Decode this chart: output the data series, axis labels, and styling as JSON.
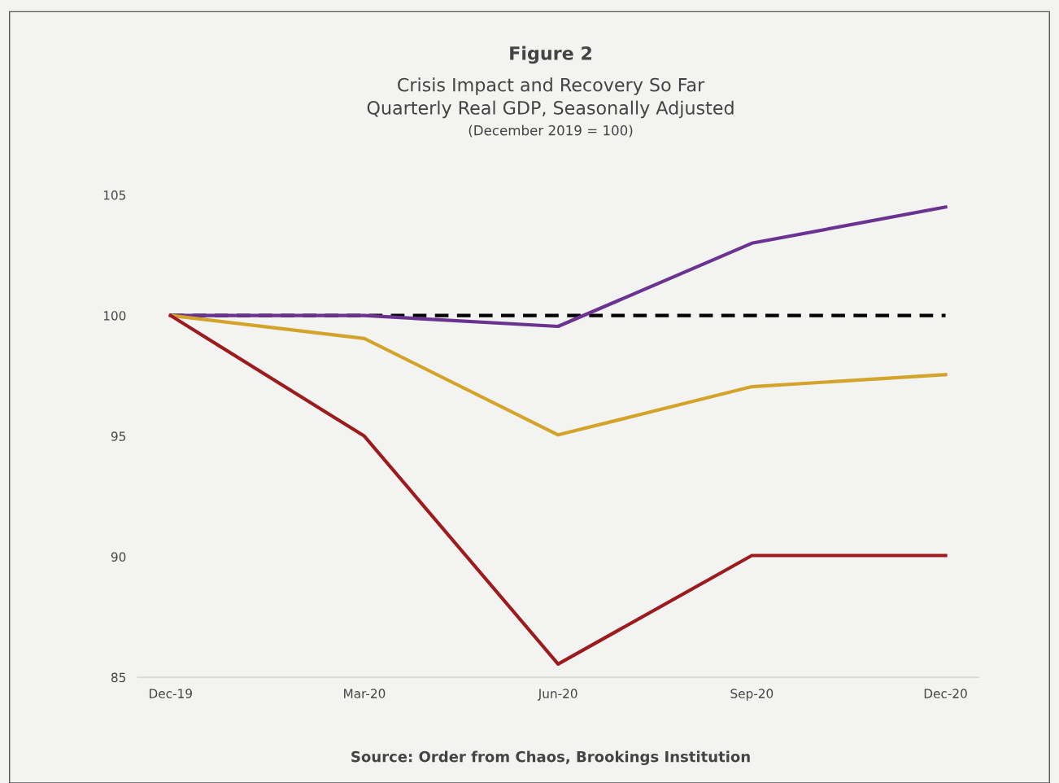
{
  "chart_data": {
    "type": "line",
    "title": "Figure 2",
    "subtitle": "Crisis Impact and Recovery So Far\nQuarterly Real GDP, Seasonally Adjusted",
    "annotations": [
      "(December 2019 = 100)",
      "Source: Order from Chaos, Brookings Institution"
    ],
    "categories": [
      "Dec-19",
      "Mar-20",
      "Jun-20",
      "Sep-20",
      "Dec-20"
    ],
    "series": [
      {
        "color": "#000000",
        "line_style": "dashed",
        "values": [
          100,
          100,
          100,
          100,
          100
        ]
      },
      {
        "color": "#6a3391",
        "values": [
          100,
          100,
          99.55,
          103.0,
          104.5
        ]
      },
      {
        "color": "#d4a42a",
        "values": [
          100,
          99.05,
          95.05,
          97.05,
          97.55
        ]
      },
      {
        "color": "#9b1b1f",
        "values": [
          100,
          95.0,
          85.55,
          90.05,
          90.05
        ]
      }
    ],
    "ylim": [
      85,
      105
    ],
    "yticks": [
      85,
      90,
      95,
      100,
      105
    ],
    "grid": false,
    "legend": false,
    "marker": "none"
  }
}
